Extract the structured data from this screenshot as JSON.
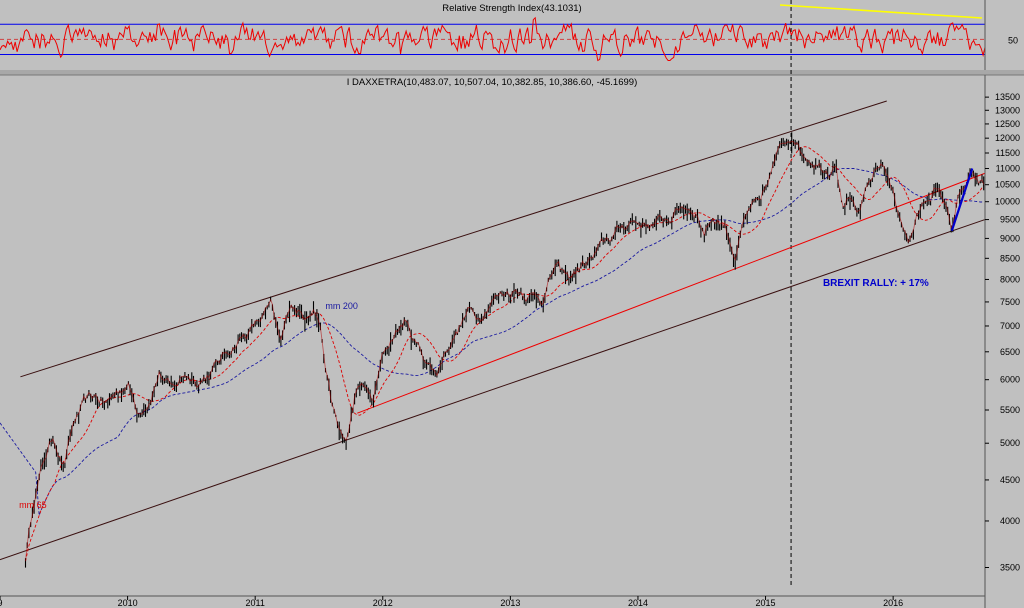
{
  "chart_data": {
    "type": "line",
    "rsi_panel": {
      "title": "Relative Strength Index(43.1031)",
      "tick_labels": [
        "50"
      ],
      "levels": [
        70,
        50,
        30
      ]
    },
    "price_panel": {
      "title": "I DAXXETRA(10,483.07, 10,507.04, 10,382.85, 10,386.60, -45.1699)",
      "scale": "log",
      "ylim": [
        3300,
        13700
      ],
      "y_ticks": [
        13500,
        13000,
        12500,
        12000,
        11500,
        11000,
        10500,
        10000,
        9500,
        9000,
        8500,
        8000,
        7500,
        7000,
        6500,
        6000,
        5500,
        5000,
        4500,
        4000,
        3500
      ],
      "x_ticks": [
        {
          "label": "9",
          "t": 2009.0
        },
        {
          "label": "2010",
          "t": 2010.0
        },
        {
          "label": "2011",
          "t": 2011.0
        },
        {
          "label": "2012",
          "t": 2012.0
        },
        {
          "label": "2013",
          "t": 2013.0
        },
        {
          "label": "2014",
          "t": 2014.0
        },
        {
          "label": "2015",
          "t": 2015.0
        },
        {
          "label": "2016",
          "t": 2016.0
        }
      ],
      "xlim": [
        2009.0,
        2016.72
      ],
      "price_path": [
        [
          2009.2,
          3600
        ],
        [
          2009.27,
          4300
        ],
        [
          2009.35,
          4800
        ],
        [
          2009.42,
          5100
        ],
        [
          2009.5,
          4700
        ],
        [
          2009.58,
          5300
        ],
        [
          2009.67,
          5600
        ],
        [
          2009.75,
          5700
        ],
        [
          2009.83,
          5600
        ],
        [
          2009.92,
          5800
        ],
        [
          2010.0,
          5950
        ],
        [
          2010.08,
          5500
        ],
        [
          2010.17,
          5700
        ],
        [
          2010.25,
          6150
        ],
        [
          2010.35,
          5800
        ],
        [
          2010.45,
          6100
        ],
        [
          2010.55,
          6000
        ],
        [
          2010.65,
          6150
        ],
        [
          2010.75,
          6400
        ],
        [
          2010.85,
          6700
        ],
        [
          2010.95,
          6900
        ],
        [
          2011.05,
          7150
        ],
        [
          2011.12,
          7400
        ],
        [
          2011.2,
          6600
        ],
        [
          2011.28,
          7500
        ],
        [
          2011.38,
          7200
        ],
        [
          2011.45,
          7500
        ],
        [
          2011.5,
          7200
        ],
        [
          2011.55,
          6300
        ],
        [
          2011.6,
          5600
        ],
        [
          2011.65,
          5200
        ],
        [
          2011.72,
          5000
        ],
        [
          2011.78,
          5700
        ],
        [
          2011.85,
          5900
        ],
        [
          2011.92,
          5600
        ],
        [
          2012.0,
          6400
        ],
        [
          2012.08,
          6800
        ],
        [
          2012.17,
          7100
        ],
        [
          2012.25,
          6700
        ],
        [
          2012.33,
          6400
        ],
        [
          2012.42,
          6100
        ],
        [
          2012.5,
          6600
        ],
        [
          2012.58,
          6900
        ],
        [
          2012.67,
          7300
        ],
        [
          2012.75,
          7200
        ],
        [
          2012.85,
          7600
        ],
        [
          2012.95,
          7700
        ],
        [
          2013.05,
          7800
        ],
        [
          2013.15,
          7700
        ],
        [
          2013.25,
          7600
        ],
        [
          2013.35,
          8300
        ],
        [
          2013.45,
          8000
        ],
        [
          2013.55,
          8300
        ],
        [
          2013.65,
          8500
        ],
        [
          2013.75,
          8900
        ],
        [
          2013.85,
          9200
        ],
        [
          2013.95,
          9500
        ],
        [
          2014.05,
          9400
        ],
        [
          2014.15,
          9400
        ],
        [
          2014.25,
          9550
        ],
        [
          2014.35,
          9900
        ],
        [
          2014.45,
          9800
        ],
        [
          2014.52,
          9200
        ],
        [
          2014.58,
          9600
        ],
        [
          2014.68,
          9400
        ],
        [
          2014.76,
          8600
        ],
        [
          2014.82,
          9300
        ],
        [
          2014.9,
          9900
        ],
        [
          2014.96,
          9800
        ],
        [
          2015.02,
          10500
        ],
        [
          2015.08,
          11300
        ],
        [
          2015.15,
          11800
        ],
        [
          2015.22,
          12200
        ],
        [
          2015.28,
          11600
        ],
        [
          2015.35,
          11400
        ],
        [
          2015.42,
          11200
        ],
        [
          2015.5,
          11000
        ],
        [
          2015.55,
          11500
        ],
        [
          2015.6,
          10000
        ],
        [
          2015.65,
          10200
        ],
        [
          2015.72,
          9500
        ],
        [
          2015.78,
          10100
        ],
        [
          2015.85,
          10800
        ],
        [
          2015.92,
          11200
        ],
        [
          2015.97,
          10600
        ],
        [
          2016.02,
          10000
        ],
        [
          2016.08,
          9400
        ],
        [
          2016.12,
          8900
        ],
        [
          2016.18,
          9500
        ],
        [
          2016.25,
          10000
        ],
        [
          2016.32,
          10400
        ],
        [
          2016.4,
          10000
        ],
        [
          2016.46,
          9300
        ],
        [
          2016.5,
          10000
        ],
        [
          2016.55,
          10300
        ],
        [
          2016.6,
          10700
        ],
        [
          2016.66,
          10500
        ],
        [
          2016.71,
          10400
        ]
      ],
      "ma_labels": [
        "mm 65",
        "mm 200"
      ],
      "annotation": "BREXIT RALLY: + 17%",
      "colors": {
        "price": "#000000",
        "ma_short": "#dd0000",
        "ma_long": "#1a1aa0",
        "rsi": "#ee0000",
        "rsi_levels": "#0000ee",
        "channel": "#3a1010",
        "trendline": "#ee0000",
        "rsi_divergence": "#ffff00",
        "rally_line": "#0000cc",
        "annotation": "#0000cc"
      }
    }
  }
}
